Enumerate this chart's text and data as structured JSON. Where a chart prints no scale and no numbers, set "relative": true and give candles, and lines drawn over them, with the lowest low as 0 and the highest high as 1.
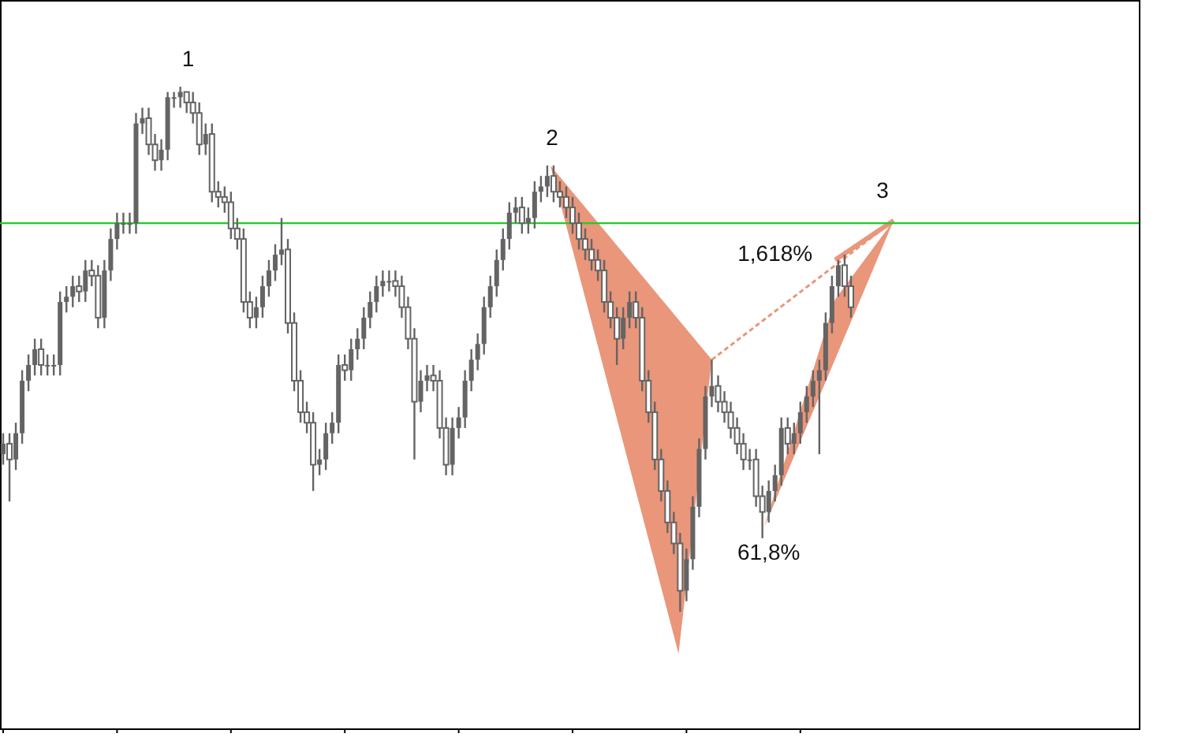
{
  "chart_data": {
    "type": "candlestick",
    "relative": true,
    "categories": [
      null,
      null,
      null,
      null,
      null,
      null,
      null,
      null,
      null,
      null,
      null,
      null,
      null,
      null,
      null,
      null,
      null,
      null,
      null,
      null,
      null,
      null,
      null,
      null,
      null,
      null,
      null,
      null,
      null,
      null,
      null,
      null,
      null,
      null,
      null,
      null,
      null,
      null,
      null,
      null,
      null,
      null,
      null,
      null,
      null,
      null,
      null,
      null,
      null,
      null,
      null,
      null,
      null,
      null,
      null,
      null,
      null,
      null,
      null,
      null,
      null,
      null,
      null,
      null,
      null,
      null,
      null,
      null,
      null,
      null,
      null,
      null,
      null,
      null,
      null,
      null,
      null,
      null,
      null,
      null,
      null,
      null,
      null,
      null,
      null,
      null,
      null,
      null,
      null,
      null,
      null,
      null,
      null,
      null,
      null,
      null,
      null,
      null,
      null,
      null,
      null,
      null,
      null,
      null,
      null,
      null,
      null,
      null,
      null,
      null,
      null,
      null,
      null,
      null,
      null,
      null,
      null,
      null,
      null,
      null,
      null,
      null,
      null,
      null,
      null,
      null,
      null,
      null,
      null,
      null,
      null,
      null,
      null,
      null,
      null
    ],
    "ohlc": [
      [
        0.3,
        0.34,
        0.28,
        0.32
      ],
      [
        0.32,
        0.34,
        0.21,
        0.29
      ],
      [
        0.29,
        0.36,
        0.27,
        0.34
      ],
      [
        0.34,
        0.46,
        0.32,
        0.44
      ],
      [
        0.44,
        0.49,
        0.42,
        0.47
      ],
      [
        0.47,
        0.52,
        0.45,
        0.5
      ],
      [
        0.5,
        0.52,
        0.45,
        0.47
      ],
      [
        0.47,
        0.49,
        0.45,
        0.47
      ],
      [
        0.47,
        0.49,
        0.45,
        0.47
      ],
      [
        0.47,
        0.61,
        0.45,
        0.59
      ],
      [
        0.59,
        0.62,
        0.57,
        0.6
      ],
      [
        0.6,
        0.64,
        0.58,
        0.62
      ],
      [
        0.62,
        0.64,
        0.59,
        0.61
      ],
      [
        0.61,
        0.67,
        0.59,
        0.65
      ],
      [
        0.65,
        0.67,
        0.62,
        0.64
      ],
      [
        0.64,
        0.66,
        0.54,
        0.56
      ],
      [
        0.56,
        0.67,
        0.54,
        0.65
      ],
      [
        0.65,
        0.73,
        0.63,
        0.71
      ],
      [
        0.71,
        0.76,
        0.69,
        0.74
      ],
      [
        0.74,
        0.76,
        0.72,
        0.74
      ],
      [
        0.74,
        0.76,
        0.72,
        0.74
      ],
      [
        0.74,
        0.95,
        0.72,
        0.93
      ],
      [
        0.93,
        0.96,
        0.91,
        0.94
      ],
      [
        0.94,
        0.96,
        0.87,
        0.89
      ],
      [
        0.89,
        0.91,
        0.84,
        0.86
      ],
      [
        0.86,
        0.9,
        0.84,
        0.88
      ],
      [
        0.88,
        0.99,
        0.86,
        0.98
      ],
      [
        0.98,
        0.99,
        0.96,
        0.98
      ],
      [
        0.98,
        1,
        0.96,
        0.99
      ],
      [
        0.99,
        0.99,
        0.95,
        0.97
      ],
      [
        0.97,
        0.99,
        0.93,
        0.95
      ],
      [
        0.95,
        0.97,
        0.87,
        0.89
      ],
      [
        0.89,
        0.93,
        0.87,
        0.91
      ],
      [
        0.91,
        0.93,
        0.78,
        0.8
      ],
      [
        0.8,
        0.82,
        0.77,
        0.79
      ],
      [
        0.79,
        0.81,
        0.76,
        0.78
      ],
      [
        0.78,
        0.8,
        0.71,
        0.73
      ],
      [
        0.73,
        0.75,
        0.69,
        0.71
      ],
      [
        0.71,
        0.73,
        0.57,
        0.59
      ],
      [
        0.59,
        0.61,
        0.54,
        0.56
      ],
      [
        0.56,
        0.6,
        0.54,
        0.58
      ],
      [
        0.58,
        0.64,
        0.56,
        0.62
      ],
      [
        0.62,
        0.67,
        0.6,
        0.65
      ],
      [
        0.65,
        0.7,
        0.63,
        0.68
      ],
      [
        0.68,
        0.75,
        0.66,
        0.69
      ],
      [
        0.69,
        0.71,
        0.53,
        0.55
      ],
      [
        0.55,
        0.57,
        0.42,
        0.44
      ],
      [
        0.44,
        0.46,
        0.36,
        0.38
      ],
      [
        0.38,
        0.4,
        0.34,
        0.36
      ],
      [
        0.36,
        0.38,
        0.23,
        0.28
      ],
      [
        0.28,
        0.31,
        0.26,
        0.29
      ],
      [
        0.29,
        0.36,
        0.27,
        0.34
      ],
      [
        0.34,
        0.38,
        0.32,
        0.36
      ],
      [
        0.36,
        0.49,
        0.34,
        0.47
      ],
      [
        0.47,
        0.49,
        0.44,
        0.46
      ],
      [
        0.46,
        0.52,
        0.44,
        0.5
      ],
      [
        0.5,
        0.54,
        0.48,
        0.52
      ],
      [
        0.52,
        0.58,
        0.5,
        0.56
      ],
      [
        0.56,
        0.61,
        0.54,
        0.59
      ],
      [
        0.59,
        0.64,
        0.57,
        0.62
      ],
      [
        0.62,
        0.65,
        0.6,
        0.63
      ],
      [
        0.63,
        0.65,
        0.61,
        0.63
      ],
      [
        0.63,
        0.65,
        0.6,
        0.62
      ],
      [
        0.62,
        0.64,
        0.56,
        0.58
      ],
      [
        0.58,
        0.6,
        0.5,
        0.52
      ],
      [
        0.52,
        0.54,
        0.29,
        0.4
      ],
      [
        0.4,
        0.46,
        0.38,
        0.44
      ],
      [
        0.44,
        0.47,
        0.42,
        0.45
      ],
      [
        0.45,
        0.47,
        0.42,
        0.44
      ],
      [
        0.44,
        0.46,
        0.33,
        0.35
      ],
      [
        0.35,
        0.37,
        0.26,
        0.28
      ],
      [
        0.28,
        0.37,
        0.26,
        0.35
      ],
      [
        0.35,
        0.39,
        0.33,
        0.37
      ],
      [
        0.37,
        0.46,
        0.35,
        0.44
      ],
      [
        0.44,
        0.5,
        0.42,
        0.48
      ],
      [
        0.48,
        0.53,
        0.46,
        0.51
      ],
      [
        0.51,
        0.6,
        0.49,
        0.58
      ],
      [
        0.58,
        0.64,
        0.56,
        0.62
      ],
      [
        0.62,
        0.69,
        0.6,
        0.67
      ],
      [
        0.67,
        0.73,
        0.65,
        0.71
      ],
      [
        0.71,
        0.78,
        0.69,
        0.76
      ],
      [
        0.76,
        0.79,
        0.74,
        0.77
      ],
      [
        0.77,
        0.79,
        0.72,
        0.74
      ],
      [
        0.74,
        0.77,
        0.72,
        0.75
      ],
      [
        0.75,
        0.82,
        0.73,
        0.8
      ],
      [
        0.8,
        0.83,
        0.78,
        0.81
      ],
      [
        0.81,
        0.85,
        0.79,
        0.83
      ],
      [
        0.83,
        0.85,
        0.78,
        0.8
      ],
      [
        0.8,
        0.82,
        0.77,
        0.79
      ],
      [
        0.79,
        0.81,
        0.75,
        0.77
      ],
      [
        0.77,
        0.79,
        0.72,
        0.74
      ],
      [
        0.74,
        0.76,
        0.69,
        0.71
      ],
      [
        0.71,
        0.73,
        0.67,
        0.69
      ],
      [
        0.69,
        0.71,
        0.65,
        0.67
      ],
      [
        0.67,
        0.69,
        0.63,
        0.65
      ],
      [
        0.65,
        0.67,
        0.57,
        0.59
      ],
      [
        0.59,
        0.61,
        0.54,
        0.56
      ],
      [
        0.56,
        0.58,
        0.47,
        0.52
      ],
      [
        0.52,
        0.58,
        0.5,
        0.56
      ],
      [
        0.56,
        0.61,
        0.54,
        0.59
      ],
      [
        0.59,
        0.61,
        0.54,
        0.56
      ],
      [
        0.56,
        0.58,
        0.42,
        0.44
      ],
      [
        0.44,
        0.46,
        0.36,
        0.38
      ],
      [
        0.38,
        0.4,
        0.27,
        0.29
      ],
      [
        0.29,
        0.31,
        0.21,
        0.23
      ],
      [
        0.23,
        0.25,
        0.15,
        0.17
      ],
      [
        0.17,
        0.19,
        0.11,
        0.13
      ],
      [
        0.13,
        0.15,
        0,
        0.04
      ],
      [
        0.04,
        0.12,
        0.02,
        0.1
      ],
      [
        0.1,
        0.22,
        0.08,
        0.2
      ],
      [
        0.2,
        0.33,
        0.18,
        0.31
      ],
      [
        0.31,
        0.43,
        0.29,
        0.41
      ],
      [
        0.41,
        0.48,
        0.39,
        0.43
      ],
      [
        0.43,
        0.45,
        0.38,
        0.4
      ],
      [
        0.4,
        0.42,
        0.36,
        0.38
      ],
      [
        0.38,
        0.4,
        0.33,
        0.35
      ],
      [
        0.35,
        0.37,
        0.3,
        0.32
      ],
      [
        0.32,
        0.34,
        0.27,
        0.29
      ],
      [
        0.29,
        0.31,
        0.27,
        0.29
      ],
      [
        0.29,
        0.31,
        0.2,
        0.22
      ],
      [
        0.22,
        0.24,
        0.14,
        0.19
      ],
      [
        0.19,
        0.25,
        0.17,
        0.23
      ],
      [
        0.23,
        0.28,
        0.21,
        0.26
      ],
      [
        0.26,
        0.37,
        0.24,
        0.35
      ],
      [
        0.35,
        0.37,
        0.3,
        0.32
      ],
      [
        0.32,
        0.36,
        0.3,
        0.34
      ],
      [
        0.34,
        0.4,
        0.32,
        0.38
      ],
      [
        0.38,
        0.43,
        0.36,
        0.41
      ],
      [
        0.41,
        0.46,
        0.39,
        0.44
      ],
      [
        0.44,
        0.48,
        0.3,
        0.46
      ],
      [
        0.46,
        0.57,
        0.44,
        0.55
      ],
      [
        0.55,
        0.64,
        0.53,
        0.62
      ],
      [
        0.62,
        0.67,
        0.6,
        0.66
      ],
      [
        0.66,
        0.68,
        0.6,
        0.62
      ],
      [
        0.62,
        0.64,
        0.56,
        0.58
      ]
    ],
    "color": "#646464",
    "ref_lines": [
      {
        "axis": "y",
        "value": 0.74,
        "color": "#22cc22"
      }
    ],
    "annotations": [
      "1",
      "2",
      "3",
      "1,618%",
      "61,8%"
    ]
  }
}
